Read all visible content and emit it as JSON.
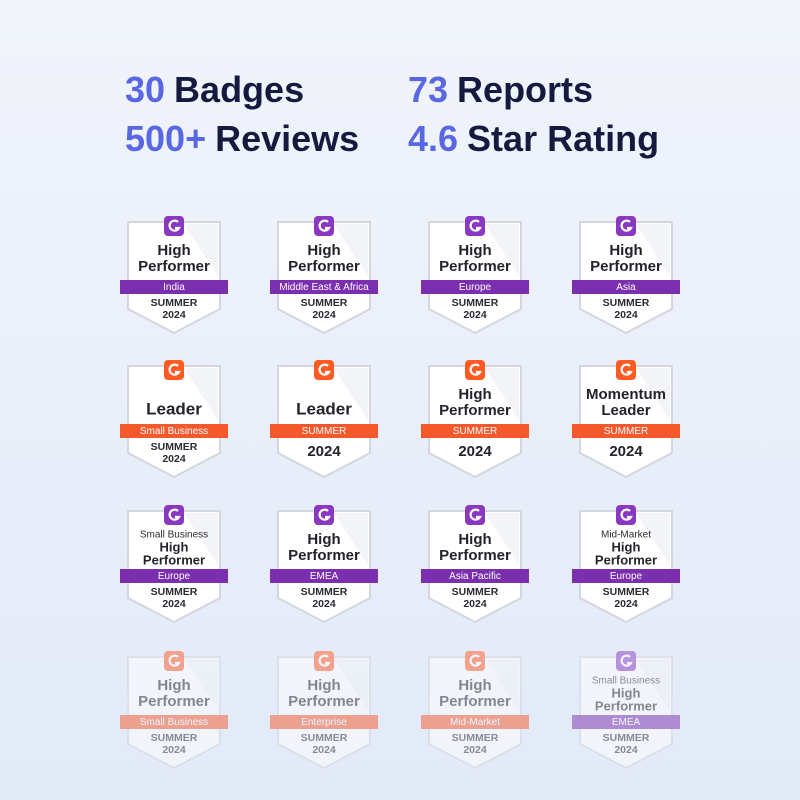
{
  "stats": [
    {
      "number": "30",
      "label": "Badges"
    },
    {
      "number": "73",
      "label": "Reports"
    },
    {
      "number": "500+",
      "label": "Reviews"
    },
    {
      "number": "4.6",
      "label": "Star Rating"
    }
  ],
  "badges": [
    {
      "theme": "purple",
      "title": [
        "High",
        "Performer"
      ],
      "ribbon": "India",
      "footer": [
        "SUMMER",
        "2024"
      ]
    },
    {
      "theme": "purple",
      "title": [
        "High",
        "Performer"
      ],
      "ribbon": "Middle East & Africa",
      "footer": [
        "SUMMER",
        "2024"
      ]
    },
    {
      "theme": "purple",
      "title": [
        "High",
        "Performer"
      ],
      "ribbon": "Europe",
      "footer": [
        "SUMMER",
        "2024"
      ]
    },
    {
      "theme": "purple",
      "title": [
        "High",
        "Performer"
      ],
      "ribbon": "Asia",
      "footer": [
        "SUMMER",
        "2024"
      ]
    },
    {
      "theme": "orange",
      "title": [
        "Leader"
      ],
      "ribbon": "Small Business",
      "footer": [
        "SUMMER",
        "2024"
      ]
    },
    {
      "theme": "orange",
      "title": [
        "Leader"
      ],
      "ribbon": "SUMMER",
      "footer": [
        "2024"
      ]
    },
    {
      "theme": "orange",
      "title": [
        "High",
        "Performer"
      ],
      "ribbon": "SUMMER",
      "footer": [
        "2024"
      ]
    },
    {
      "theme": "orange",
      "title": [
        "Momentum",
        "Leader"
      ],
      "ribbon": "SUMMER",
      "footer": [
        "2024"
      ]
    },
    {
      "theme": "purple",
      "segment": "Small Business",
      "title": [
        "High",
        "Performer"
      ],
      "ribbon": "Europe",
      "footer": [
        "SUMMER",
        "2024"
      ]
    },
    {
      "theme": "purple",
      "title": [
        "High",
        "Performer"
      ],
      "ribbon": "EMEA",
      "footer": [
        "SUMMER",
        "2024"
      ]
    },
    {
      "theme": "purple",
      "title": [
        "High",
        "Performer"
      ],
      "ribbon": "Asia Pacific",
      "footer": [
        "SUMMER",
        "2024"
      ]
    },
    {
      "theme": "purple",
      "segment": "Mid-Market",
      "title": [
        "High",
        "Performer"
      ],
      "ribbon": "Europe",
      "footer": [
        "SUMMER",
        "2024"
      ]
    },
    {
      "theme": "orange",
      "title": [
        "High",
        "Performer"
      ],
      "ribbon": "Small Business",
      "footer": [
        "SUMMER",
        "2024"
      ]
    },
    {
      "theme": "orange",
      "title": [
        "High",
        "Performer"
      ],
      "ribbon": "Enterprise",
      "footer": [
        "SUMMER",
        "2024"
      ]
    },
    {
      "theme": "orange",
      "title": [
        "High",
        "Performer"
      ],
      "ribbon": "Mid-Market",
      "footer": [
        "SUMMER",
        "2024"
      ]
    },
    {
      "theme": "purple",
      "segment": "Small Business",
      "title": [
        "High",
        "Performer"
      ],
      "ribbon": "EMEA",
      "footer": [
        "SUMMER",
        "2024"
      ]
    }
  ]
}
